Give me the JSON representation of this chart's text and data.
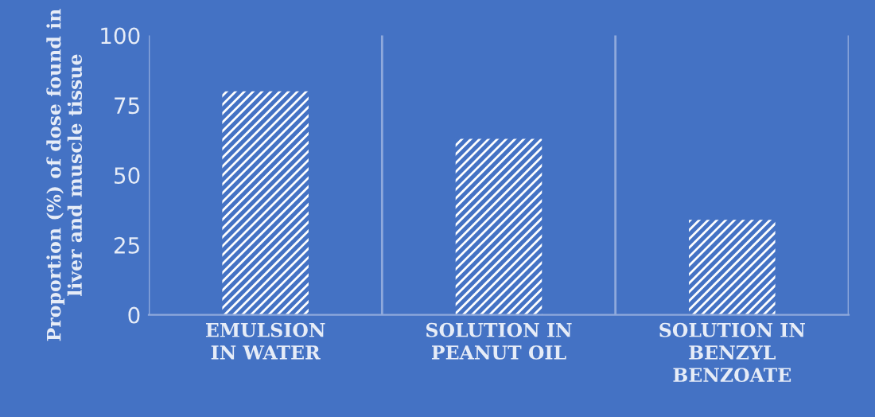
{
  "chart_data": {
    "type": "bar",
    "ylabel": "Proportion (%) of dose found in\nliver and muscle tissue",
    "categories": [
      "EMULSION\nIN WATER",
      "SOLUTION IN\nPEANUT OIL",
      "SOLUTION IN\nBENZYL\nBENZOATE"
    ],
    "values": [
      80,
      63,
      34
    ],
    "color": "#ffffff",
    "ylim": [
      0,
      100
    ],
    "yticks": [
      0,
      25,
      50,
      75,
      100
    ],
    "grid": "x"
  }
}
